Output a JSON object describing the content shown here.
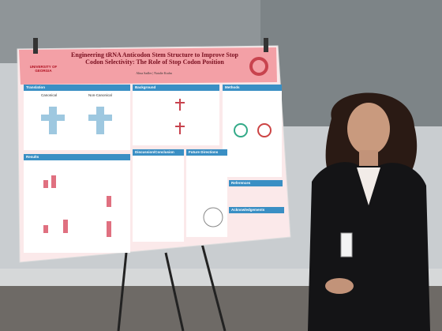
{
  "poster": {
    "title": "Engineering tRNA Anticodon Stem Structure to Improve Stop Codon Selectivity: The Role of Stop Codon Position",
    "institution": "UNIVERSITY OF GEORGIA",
    "authors": "Alina Sadler | Natalie Krahn",
    "sections": [
      {
        "heading": "Translation"
      },
      {
        "heading": "Background"
      },
      {
        "heading": "Methods"
      },
      {
        "heading": "Results"
      },
      {
        "heading": "Discussion/Conclusion"
      },
      {
        "heading": "Future Directions"
      },
      {
        "heading": "References"
      },
      {
        "heading": "Acknowledgements"
      }
    ],
    "labels": [
      "Canonical",
      "Non-Canonical"
    ]
  }
}
